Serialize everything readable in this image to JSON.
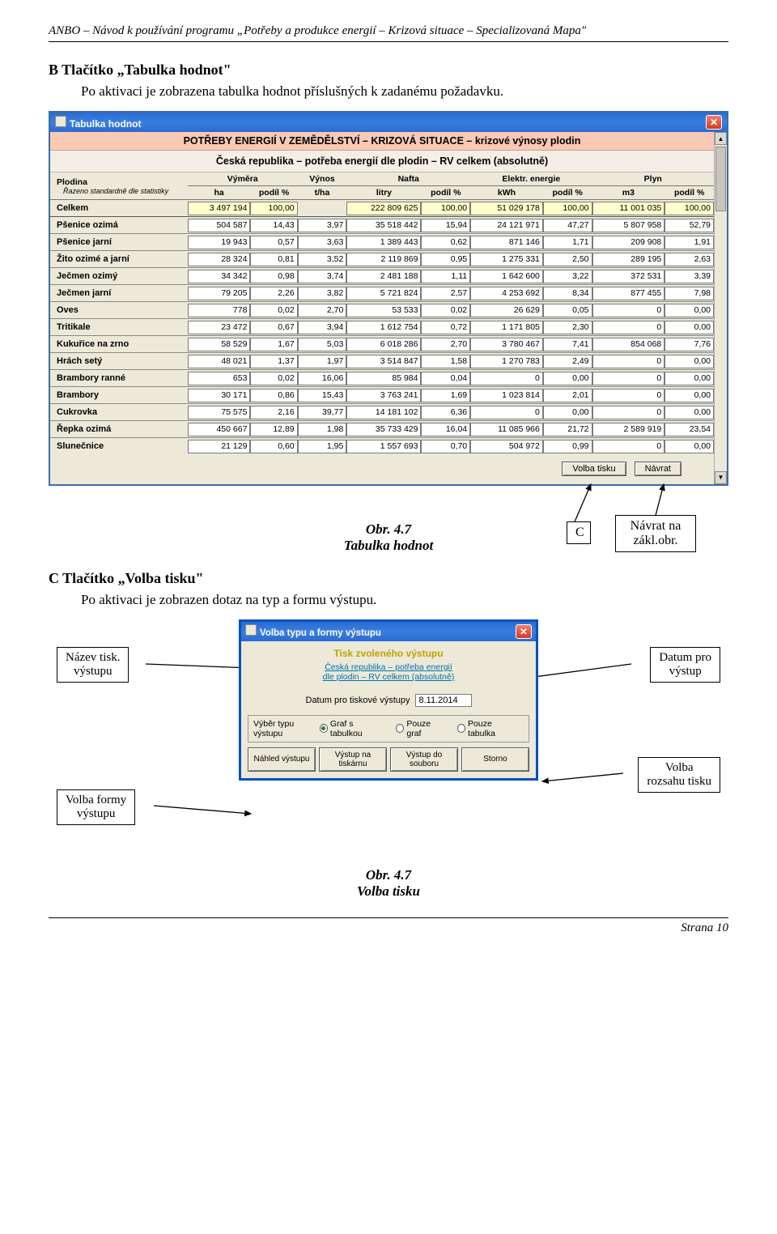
{
  "doc": {
    "header": "ANBO – Návod k používání programu „Potřeby a produkce energií – Krizová situace – Specializovaná Mapa\"",
    "sectionB_heading": "B   Tlačítko „Tabulka hodnot\"",
    "sectionB_text": "Po aktivaci je zobrazena tabulka hodnot příslušných k zadanému požadavku.",
    "fig47a_l1": "Obr. 4.7",
    "fig47a_l2": "Tabulka hodnot",
    "c_letter": "C",
    "c_box": "Návrat na zákl.obr.",
    "sectionC_heading": "C   Tlačítko „Volba tisku\"",
    "sectionC_text": "Po aktivaci je zobrazen dotaz na typ a formu výstupu.",
    "box_nazev_l1": "Název tisk.",
    "box_nazev_l2": "výstupu",
    "box_datum_l1": "Datum pro",
    "box_datum_l2": "výstup",
    "box_formy_l1": "Volba formy",
    "box_formy_l2": "výstupu",
    "box_rozsahu_l1": "Volba",
    "box_rozsahu_l2": "rozsahu tisku",
    "fig47b_l1": "Obr. 4.7",
    "fig47b_l2": "Volba tisku",
    "footer": "Strana 10"
  },
  "win1": {
    "title": "Tabulka hodnot",
    "banner": "POTŘEBY ENERGIÍ V ZEMĚDĚLSTVÍ – KRIZOVÁ SITUACE – krizové výnosy plodin",
    "subbanner": "Česká republika – potřeba energií dle plodin – RV celkem (absolutně)",
    "cols": {
      "plodina": "Plodina",
      "subnote": "Řazeno standardně dle statistiky",
      "vymera": "Výměra",
      "ha": "ha",
      "podil": "podíl %",
      "vynos": "Výnos",
      "tha": "t/ha",
      "nafta": "Nafta",
      "litry": "litry",
      "elektr": "Elektr. energie",
      "kwh": "kWh",
      "plyn": "Plyn",
      "m3": "m3"
    },
    "total": {
      "name": "Celkem",
      "ha": "3 497 194",
      "hap": "100,00",
      "tha": "",
      "litry": "222 809 625",
      "naftap": "100,00",
      "kwh": "51 029 178",
      "elp": "100,00",
      "m3": "11 001 035",
      "plp": "100,00"
    },
    "rows": [
      {
        "name": "Pšenice ozimá",
        "ha": "504 587",
        "hap": "14,43",
        "tha": "3,97",
        "litry": "35 518 442",
        "naftap": "15,94",
        "kwh": "24 121 971",
        "elp": "47,27",
        "m3": "5 807 958",
        "plp": "52,79"
      },
      {
        "name": "Pšenice jarní",
        "ha": "19 943",
        "hap": "0,57",
        "tha": "3,63",
        "litry": "1 389 443",
        "naftap": "0,62",
        "kwh": "871 146",
        "elp": "1,71",
        "m3": "209 908",
        "plp": "1,91"
      },
      {
        "name": "Žito ozimé a jarní",
        "ha": "28 324",
        "hap": "0,81",
        "tha": "3,52",
        "litry": "2 119 869",
        "naftap": "0,95",
        "kwh": "1 275 331",
        "elp": "2,50",
        "m3": "289 195",
        "plp": "2,63"
      },
      {
        "name": "Ječmen ozimý",
        "ha": "34 342",
        "hap": "0,98",
        "tha": "3,74",
        "litry": "2 481 188",
        "naftap": "1,11",
        "kwh": "1 642 600",
        "elp": "3,22",
        "m3": "372 531",
        "plp": "3,39"
      },
      {
        "name": "Ječmen jarní",
        "ha": "79 205",
        "hap": "2,26",
        "tha": "3,82",
        "litry": "5 721 824",
        "naftap": "2,57",
        "kwh": "4 253 692",
        "elp": "8,34",
        "m3": "877 455",
        "plp": "7,98"
      },
      {
        "name": "Oves",
        "ha": "778",
        "hap": "0,02",
        "tha": "2,70",
        "litry": "53 533",
        "naftap": "0,02",
        "kwh": "26 629",
        "elp": "0,05",
        "m3": "0",
        "plp": "0,00"
      },
      {
        "name": "Tritikale",
        "ha": "23 472",
        "hap": "0,67",
        "tha": "3,94",
        "litry": "1 612 754",
        "naftap": "0,72",
        "kwh": "1 171 805",
        "elp": "2,30",
        "m3": "0",
        "plp": "0,00"
      },
      {
        "name": "Kukuřice na zrno",
        "ha": "58 529",
        "hap": "1,67",
        "tha": "5,03",
        "litry": "6 018 286",
        "naftap": "2,70",
        "kwh": "3 780 467",
        "elp": "7,41",
        "m3": "854 068",
        "plp": "7,76"
      },
      {
        "name": "Hrách setý",
        "ha": "48 021",
        "hap": "1,37",
        "tha": "1,97",
        "litry": "3 514 847",
        "naftap": "1,58",
        "kwh": "1 270 783",
        "elp": "2,49",
        "m3": "0",
        "plp": "0,00"
      },
      {
        "name": "Brambory ranné",
        "ha": "653",
        "hap": "0,02",
        "tha": "16,06",
        "litry": "85 984",
        "naftap": "0,04",
        "kwh": "0",
        "elp": "0,00",
        "m3": "0",
        "plp": "0,00"
      },
      {
        "name": "Brambory",
        "ha": "30 171",
        "hap": "0,86",
        "tha": "15,43",
        "litry": "3 763 241",
        "naftap": "1,69",
        "kwh": "1 023 814",
        "elp": "2,01",
        "m3": "0",
        "plp": "0,00"
      },
      {
        "name": "Cukrovka",
        "ha": "75 575",
        "hap": "2,16",
        "tha": "39,77",
        "litry": "14 181 102",
        "naftap": "6,36",
        "kwh": "0",
        "elp": "0,00",
        "m3": "0",
        "plp": "0,00"
      },
      {
        "name": "Řepka ozimá",
        "ha": "450 667",
        "hap": "12,89",
        "tha": "1,98",
        "litry": "35 733 429",
        "naftap": "16,04",
        "kwh": "11 085 966",
        "elp": "21,72",
        "m3": "2 589 919",
        "plp": "23,54"
      },
      {
        "name": "Slunečnice",
        "ha": "21 129",
        "hap": "0,60",
        "tha": "1,95",
        "litry": "1 557 693",
        "naftap": "0,70",
        "kwh": "504 972",
        "elp": "0,99",
        "m3": "0",
        "plp": "0,00"
      }
    ],
    "btn_tisk": "Volba tisku",
    "btn_navrat": "Návrat"
  },
  "dlg": {
    "title": "Volba typu a formy výstupu",
    "h1": "Tisk zvoleného výstupu",
    "sub_l1": "Česká republika – potřeba energií",
    "sub_l2": "dle plodin – RV celkem (absolutně)",
    "date_label": "Datum pro tiskové výstupy",
    "date_value": "8.11.2014",
    "vyber_label": "Výběr typu výstupu",
    "r1": "Graf s tabulkou",
    "r2": "Pouze graf",
    "r3": "Pouze tabulka",
    "b1": "Náhled výstupu",
    "b2": "Výstup na tiskárnu",
    "b3": "Výstup do souboru",
    "b4": "Storno"
  }
}
